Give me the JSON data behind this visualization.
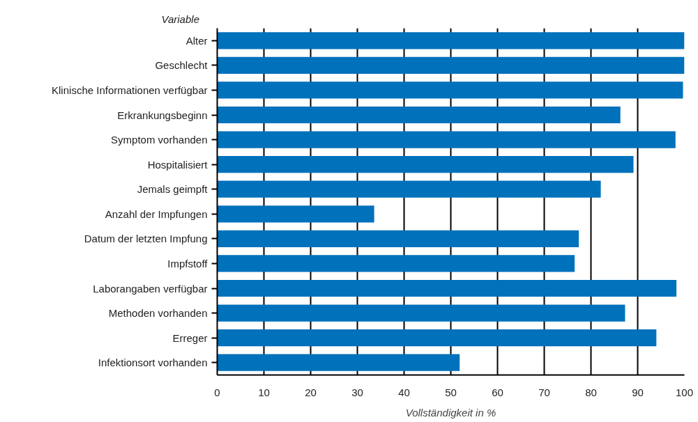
{
  "chart_data": {
    "type": "bar",
    "orientation": "horizontal",
    "ylabel": "Variable",
    "xlabel": "Vollständigkeit in %",
    "categories": [
      "Alter",
      "Geschlecht",
      "Klinische Informationen verfügbar",
      "Erkrankungsbeginn",
      "Symptom vorhanden",
      "Hospitalisiert",
      "Jemals geimpft",
      "Anzahl der Impfungen",
      "Datum der letzten Impfung",
      "Impfstoff",
      "Laborangaben verfügbar",
      "Methoden vorhanden",
      "Erreger",
      "Infektionsort vorhanden"
    ],
    "values": [
      100,
      100,
      99.7,
      86.3,
      98.1,
      89.1,
      82.1,
      33.6,
      77.4,
      76.5,
      98.3,
      87.3,
      94.0,
      51.9
    ],
    "color": "#0071bb",
    "xlim": [
      0,
      100
    ],
    "xticks": [
      0,
      10,
      20,
      30,
      40,
      50,
      60,
      70,
      80,
      90,
      100
    ],
    "grid": "x"
  }
}
